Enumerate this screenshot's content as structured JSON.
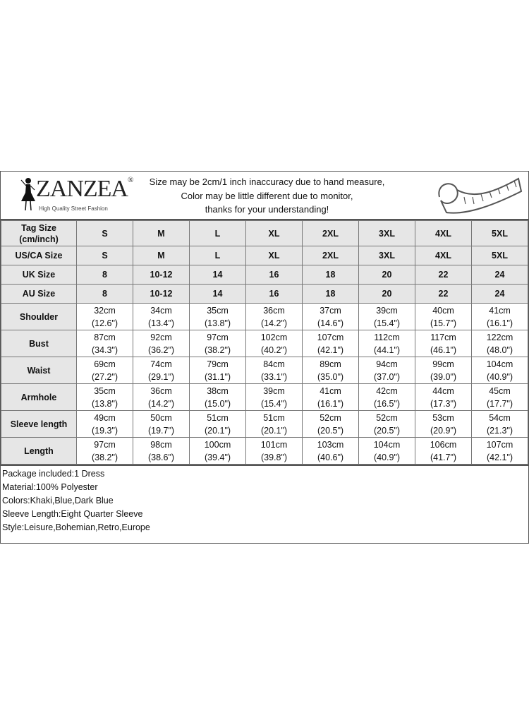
{
  "header": {
    "brand": "ZANZEA",
    "brand_mark": "®",
    "tagline": "High Quality Street Fashion",
    "notice": [
      "Size may be 2cm/1 inch inaccuracy due to hand measure,",
      "Color may be little different due to monitor,",
      "thanks for your understanding!"
    ],
    "icon": "measuring-tape-icon"
  },
  "size_rows": [
    {
      "label": "Tag Size (cm/inch)",
      "values": [
        "S",
        "M",
        "L",
        "XL",
        "2XL",
        "3XL",
        "4XL",
        "5XL"
      ]
    },
    {
      "label": "US/CA Size",
      "values": [
        "S",
        "M",
        "L",
        "XL",
        "2XL",
        "3XL",
        "4XL",
        "5XL"
      ]
    },
    {
      "label": "UK Size",
      "values": [
        "8",
        "10-12",
        "14",
        "16",
        "18",
        "20",
        "22",
        "24"
      ]
    },
    {
      "label": "AU Size",
      "values": [
        "8",
        "10-12",
        "14",
        "16",
        "18",
        "20",
        "22",
        "24"
      ]
    }
  ],
  "measure_rows": [
    {
      "label": "Shoulder",
      "cm": [
        "32cm",
        "34cm",
        "35cm",
        "36cm",
        "37cm",
        "39cm",
        "40cm",
        "41cm"
      ],
      "inch": [
        "(12.6\")",
        "(13.4\")",
        "(13.8\")",
        "(14.2\")",
        "(14.6\")",
        "(15.4\")",
        "(15.7\")",
        "(16.1\")"
      ]
    },
    {
      "label": "Bust",
      "cm": [
        "87cm",
        "92cm",
        "97cm",
        "102cm",
        "107cm",
        "112cm",
        "117cm",
        "122cm"
      ],
      "inch": [
        "(34.3\")",
        "(36.2\")",
        "(38.2\")",
        "(40.2\")",
        "(42.1\")",
        "(44.1\")",
        "(46.1\")",
        "(48.0\")"
      ]
    },
    {
      "label": "Waist",
      "cm": [
        "69cm",
        "74cm",
        "79cm",
        "84cm",
        "89cm",
        "94cm",
        "99cm",
        "104cm"
      ],
      "inch": [
        "(27.2\")",
        "(29.1\")",
        "(31.1\")",
        "(33.1\")",
        "(35.0\")",
        "(37.0\")",
        "(39.0\")",
        "(40.9\")"
      ]
    },
    {
      "label": "Armhole",
      "cm": [
        "35cm",
        "36cm",
        "38cm",
        "39cm",
        "41cm",
        "42cm",
        "44cm",
        "45cm"
      ],
      "inch": [
        "(13.8\")",
        "(14.2\")",
        "(15.0\")",
        "(15.4\")",
        "(16.1\")",
        "(16.5\")",
        "(17.3\")",
        "(17.7\")"
      ]
    },
    {
      "label": "Sleeve length",
      "cm": [
        "49cm",
        "50cm",
        "51cm",
        "51cm",
        "52cm",
        "52cm",
        "53cm",
        "54cm"
      ],
      "inch": [
        "(19.3\")",
        "(19.7\")",
        "(20.1\")",
        "(20.1\")",
        "(20.5\")",
        "(20.5\")",
        "(20.9\")",
        "(21.3\")"
      ]
    },
    {
      "label": "Length",
      "cm": [
        "97cm",
        "98cm",
        "100cm",
        "101cm",
        "103cm",
        "104cm",
        "106cm",
        "107cm"
      ],
      "inch": [
        "(38.2\")",
        "(38.6\")",
        "(39.4\")",
        "(39.8\")",
        "(40.6\")",
        "(40.9\")",
        "(41.7\")",
        "(42.1\")"
      ]
    }
  ],
  "notes": [
    "Package included:1 Dress",
    "Material:100% Polyester",
    "Colors:Khaki,Blue,Dark Blue",
    "Sleeve Length:Eight Quarter Sleeve",
    "Style:Leisure,Bohemian,Retro,Europe"
  ]
}
